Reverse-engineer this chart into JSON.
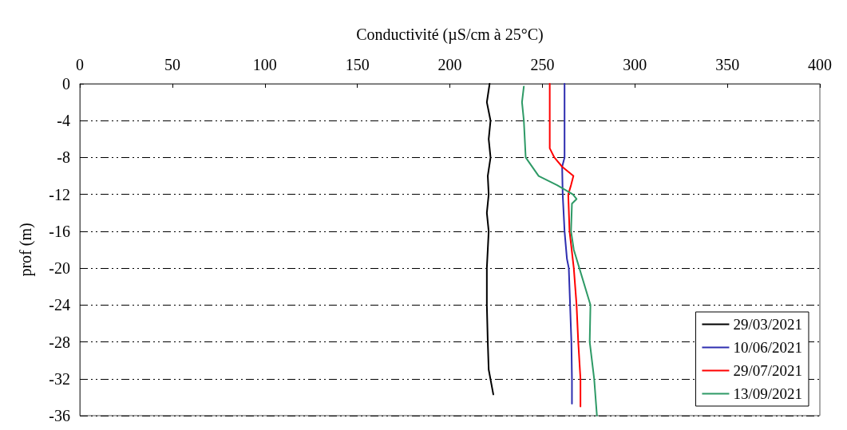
{
  "chart_data": {
    "type": "line",
    "xlabel": "Conductivité (µS/cm à 25°C)",
    "ylabel": "prof (m)",
    "xlim": [
      0,
      400
    ],
    "xticks": [
      0,
      50,
      100,
      150,
      200,
      250,
      300,
      350,
      400
    ],
    "ylim": [
      -36,
      0
    ],
    "yticks": [
      -36,
      -32,
      -28,
      -24,
      -20,
      -16,
      -12,
      -8,
      -4,
      0
    ],
    "grid": "y",
    "legend": "bottom right",
    "marker": "none",
    "line_style": "solid",
    "series": [
      {
        "name": "29/03/2021",
        "color": "#000000",
        "x": [
          221.5,
          220,
          222,
          221,
          222,
          220.5,
          221,
          220,
          221,
          220,
          220,
          220.5,
          221,
          223.5
        ],
        "values": [
          0,
          -2,
          -4,
          -6,
          -8,
          -10,
          -12,
          -14,
          -16,
          -20,
          -24,
          -28,
          -31,
          -33.7
        ]
      },
      {
        "name": "10/06/2021",
        "color": "#2e2eb0",
        "x": [
          262,
          262,
          262,
          262,
          260.7,
          261,
          262,
          263.3,
          264.3,
          265,
          265.7,
          266,
          266
        ],
        "values": [
          0,
          -4,
          -7,
          -8,
          -9,
          -12,
          -16,
          -19,
          -20,
          -24,
          -28,
          -32,
          -34.7
        ]
      },
      {
        "name": "29/07/2021",
        "color": "#ff0000",
        "x": [
          254,
          254,
          254,
          256.5,
          260.7,
          266.8,
          265.5,
          264,
          264.7,
          267,
          268.5,
          269.4,
          270.6,
          270.6
        ],
        "values": [
          0,
          -4,
          -7,
          -8,
          -9,
          -10,
          -11,
          -12,
          -16,
          -20,
          -24,
          -28,
          -32,
          -35
        ]
      },
      {
        "name": "13/09/2021",
        "color": "#2e9a66",
        "x": [
          240,
          239,
          240,
          241,
          248,
          258,
          266.5,
          268.5,
          266,
          265.5,
          267,
          270,
          276,
          275.6,
          278,
          279.5
        ],
        "values": [
          -0.3,
          -2,
          -4,
          -8,
          -10,
          -11,
          -12,
          -12.5,
          -13,
          -16,
          -18,
          -20,
          -24,
          -28,
          -32,
          -36
        ]
      }
    ]
  }
}
